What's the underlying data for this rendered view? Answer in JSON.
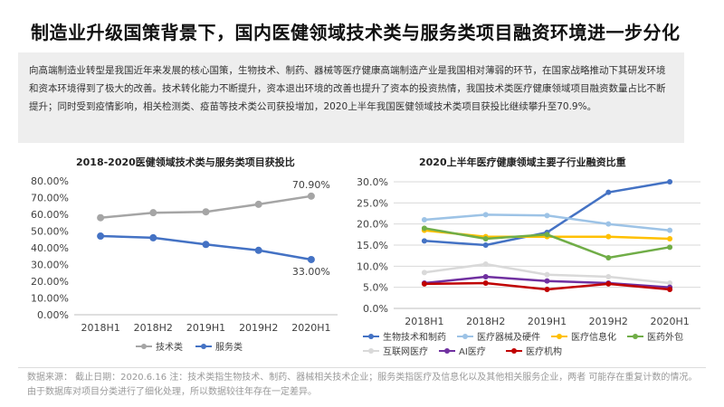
{
  "page": {
    "title": "制造业升级国策背景下，国内医健领域技术类与服务类项目融资环境进一步分化",
    "intro": "向高端制造业转型是我国近年来发展的核心国策，生物技术、制药、器械等医疗健康高端制造产业是我国相对薄弱的环节，在国家战略推动下其研发环境和资本环境得到了极大的改善。技术转化能力不断提升，资本退出环境的改善也提升了资本的投资热情，我国技术类医疗健康领域项目融资数量占比不断提升；同时受到疫情影响，相关检测类、疫苗等技术类公司获投增加，2020上半年我国医健领域技术类项目获投比继续攀升至70.9%。",
    "footer": "数据来源：  截止日期：2020.6.16 注：技术类指生物技术、制药、器械相关技术企业；服务类指医疗及信息化以及其他相关服务企业，两者 可能存在重复计数的情况。由于数据库对项目分类进行了细化处理，所以数据较往年存在一定差异。"
  },
  "chart_data": [
    {
      "type": "line",
      "title": "2018-2020医健领域技术类与服务类项目获投比",
      "categories": [
        "2018H1",
        "2018H2",
        "2019H1",
        "2019H2",
        "2020H1"
      ],
      "series": [
        {
          "name": "技术类",
          "values": [
            58.0,
            61.0,
            61.5,
            66.0,
            70.9
          ],
          "color": "#A5A5A5"
        },
        {
          "name": "服务类",
          "values": [
            47.0,
            46.0,
            42.0,
            38.5,
            33.0
          ],
          "color": "#4472C4"
        }
      ],
      "ylim": [
        0,
        80
      ],
      "yticks": [
        "0.00%",
        "10.00%",
        "20.00%",
        "30.00%",
        "40.00%",
        "50.00%",
        "60.00%",
        "70.00%",
        "80.00%"
      ],
      "data_labels": [
        {
          "series": "技术类",
          "index": 4,
          "text": "70.90%",
          "pos": "above"
        },
        {
          "series": "服务类",
          "index": 4,
          "text": "33.00%",
          "pos": "below"
        }
      ],
      "grid": false,
      "legend": "bottom"
    },
    {
      "type": "line",
      "title": "2020上半年医疗健康领域主要子行业融资比重",
      "categories": [
        "2018H1",
        "2018H2",
        "2019H1",
        "2019H2",
        "2020H1"
      ],
      "series": [
        {
          "name": "生物技术和制药",
          "values": [
            16.0,
            15.0,
            18.0,
            27.5,
            30.0
          ],
          "color": "#4472C4"
        },
        {
          "name": "医疗器械及硬件",
          "values": [
            21.0,
            22.2,
            22.0,
            20.0,
            18.5
          ],
          "color": "#9DC3E6"
        },
        {
          "name": "医疗信息化",
          "values": [
            18.5,
            17.0,
            17.0,
            17.0,
            16.5
          ],
          "color": "#FFC000"
        },
        {
          "name": "医药外包",
          "values": [
            19.0,
            16.5,
            17.5,
            12.0,
            14.5
          ],
          "color": "#70AD47"
        },
        {
          "name": "互联网医疗",
          "values": [
            8.5,
            10.5,
            8.0,
            7.5,
            6.0
          ],
          "color": "#D9D9D9"
        },
        {
          "name": "AI医疗",
          "values": [
            6.0,
            7.5,
            6.5,
            6.0,
            5.0
          ],
          "color": "#7030A0"
        },
        {
          "name": "医疗机构",
          "values": [
            5.8,
            6.0,
            4.5,
            5.8,
            4.5
          ],
          "color": "#C00000"
        }
      ],
      "ylim": [
        0,
        30
      ],
      "yticks": [
        "0.0%",
        "5.0%",
        "10.0%",
        "15.0%",
        "20.0%",
        "25.0%",
        "30.0%"
      ],
      "grid": true,
      "legend": "bottom"
    }
  ]
}
